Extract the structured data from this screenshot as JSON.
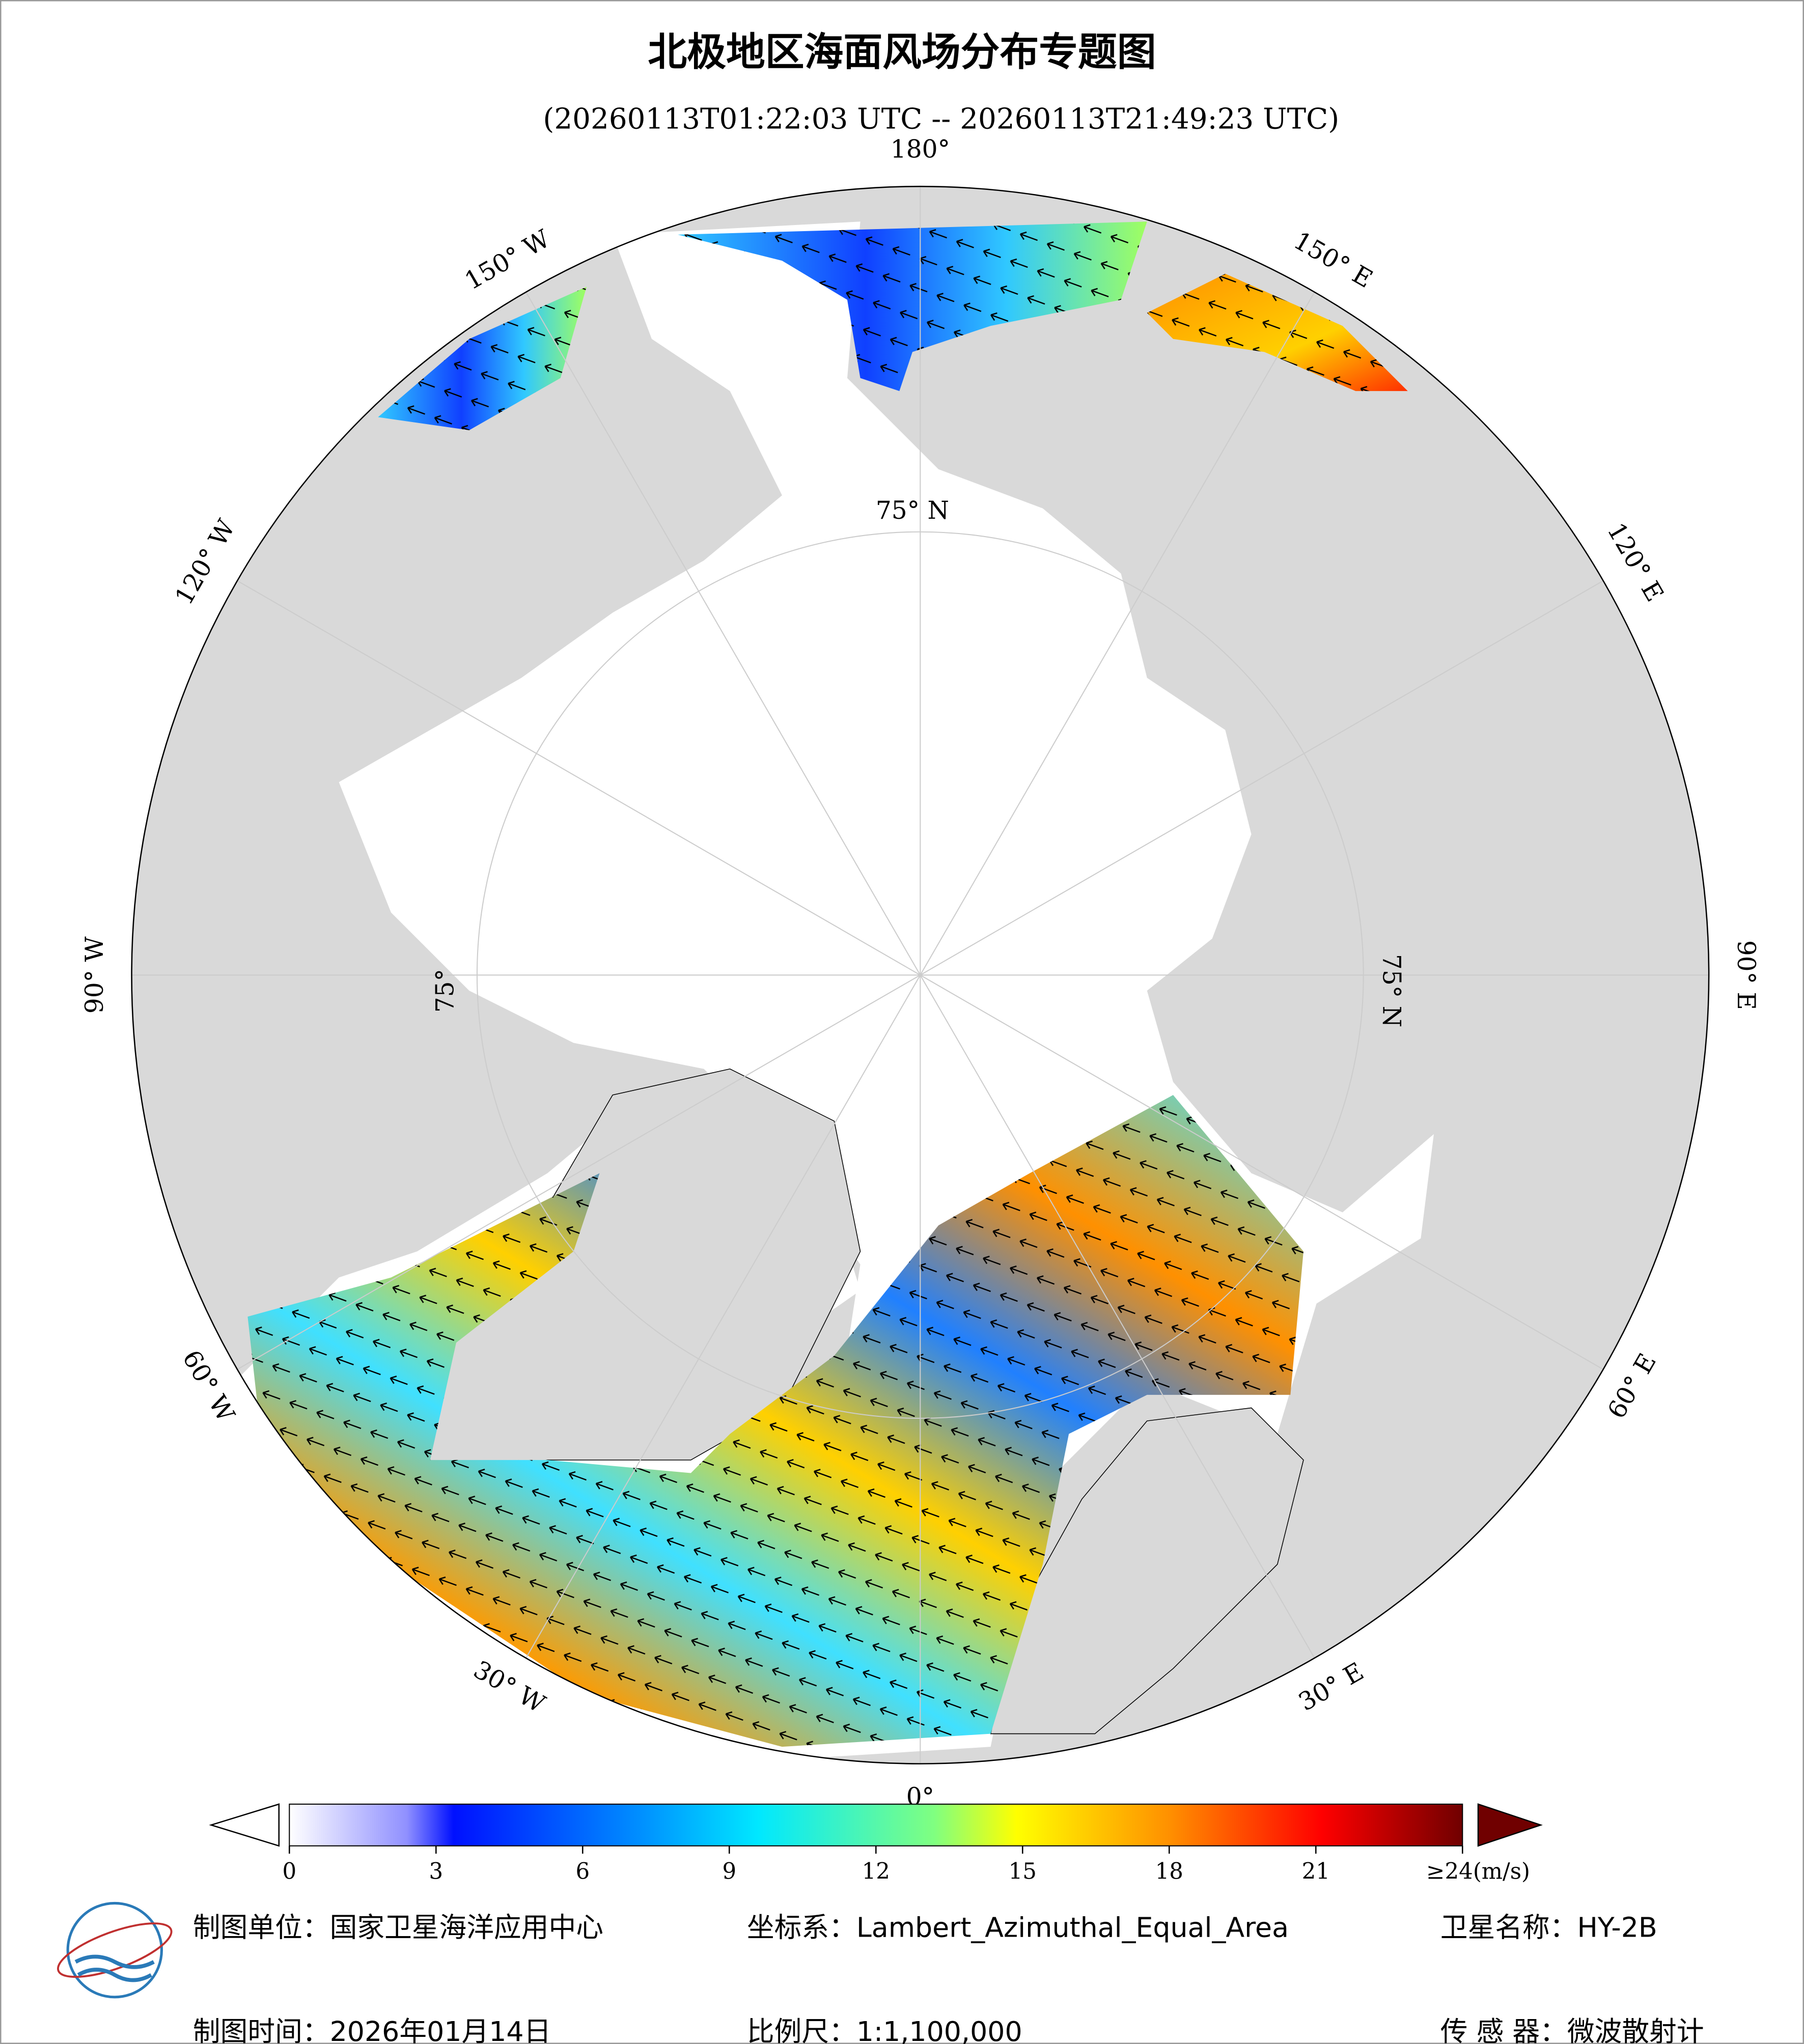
{
  "header": {
    "title": "北极地区海面风场分布专题图",
    "subtitle": "(20260113T01:22:03 UTC -- 20260113T21:49:23 UTC)"
  },
  "map": {
    "longitude_labels": [
      "180°",
      "150° E",
      "120° E",
      "90° E",
      "60° E",
      "30° E",
      "0°",
      "30° W",
      "60° W",
      "90° W",
      "120° W",
      "150° W"
    ],
    "latitude_labels": [
      "75° N",
      "75° N",
      "75°"
    ]
  },
  "legend": {
    "lim": [
      0,
      24
    ],
    "ticks": [
      0,
      3,
      6,
      9,
      12,
      15,
      18,
      21,
      {
        "value": 24,
        "label": "≥24(m/s)"
      }
    ]
  },
  "footer": {
    "unit": "制图单位：国家卫星海洋应用中心",
    "crs": "坐标系：Lambert_Azimuthal_Equal_Area",
    "satellite": "卫星名称：HY-2B",
    "date": "制图时间：2026年01月14日",
    "scale": "比例尺：1:1,100,000",
    "sensor": "传 感 器：微波散射计"
  }
}
